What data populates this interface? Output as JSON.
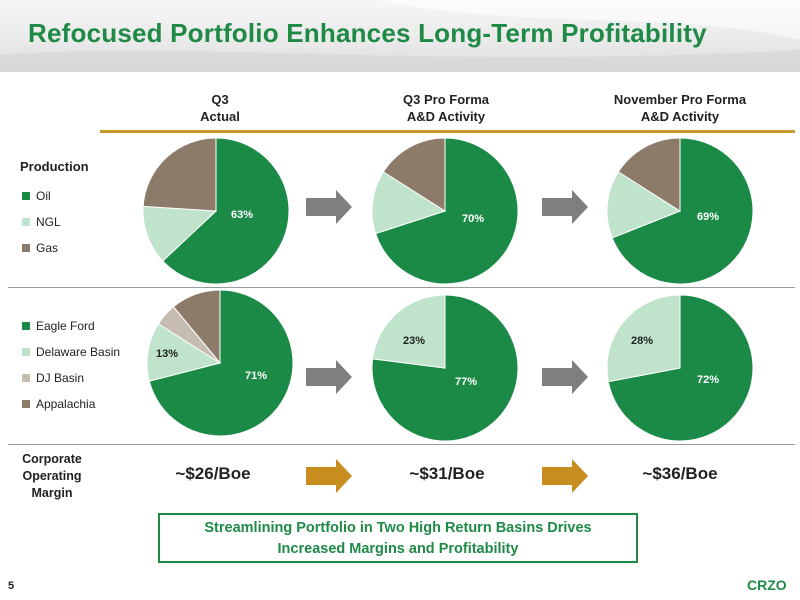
{
  "title": "Refocused Portfolio Enhances Long-Term Profitability",
  "columns": [
    {
      "line1": "Q3",
      "line2": "Actual"
    },
    {
      "line1": "Q3 Pro Forma",
      "line2": "A&D Activity"
    },
    {
      "line1": "November Pro Forma",
      "line2": "A&D Activity"
    }
  ],
  "production": {
    "label": "Production",
    "legend": [
      {
        "label": "Oil",
        "color": "#1b8a47"
      },
      {
        "label": "NGL",
        "color": "#bfe3cb"
      },
      {
        "label": "Gas",
        "color": "#8d7b6a"
      }
    ]
  },
  "basins": {
    "legend": [
      {
        "label": "Eagle Ford",
        "color": "#1b8a47"
      },
      {
        "label": "Delaware Basin",
        "color": "#bfe3cb"
      },
      {
        "label": "DJ Basin",
        "color": "#c7bcb0"
      },
      {
        "label": "Appalachia",
        "color": "#8d7b6a"
      }
    ]
  },
  "margin": {
    "label_lines": [
      "Corporate",
      "Operating",
      "Margin"
    ],
    "values": [
      "~$26/Boe",
      "~$31/Boe",
      "~$36/Boe"
    ]
  },
  "callout": {
    "line1": "Streamlining Portfolio in Two High Return Basins Drives",
    "line2": "Increased Margins and Profitability"
  },
  "footer": {
    "page_number": "5",
    "logo": "CRZO"
  },
  "chart_data": [
    {
      "type": "pie",
      "title": "Q3 Actual",
      "labels": [
        "Oil",
        "NGL",
        "Gas"
      ],
      "values": [
        63,
        13,
        24
      ],
      "slice_labels": [
        "63%",
        "",
        ""
      ]
    },
    {
      "type": "pie",
      "title": "Q3 Pro Forma A&D Activity",
      "labels": [
        "Oil",
        "NGL",
        "Gas"
      ],
      "values": [
        70,
        14,
        16
      ],
      "slice_labels": [
        "70%",
        "",
        ""
      ]
    },
    {
      "type": "pie",
      "title": "November Pro Forma A&D Activity",
      "labels": [
        "Oil",
        "NGL",
        "Gas"
      ],
      "values": [
        69,
        15,
        16
      ],
      "slice_labels": [
        "69%",
        "",
        ""
      ]
    },
    {
      "type": "pie",
      "title": "Q3 Actual",
      "labels": [
        "Eagle Ford",
        "Delaware Basin",
        "DJ Basin",
        "Appalachia"
      ],
      "values": [
        71,
        13,
        5,
        11
      ],
      "slice_labels": [
        "71%",
        "13%",
        "",
        ""
      ]
    },
    {
      "type": "pie",
      "title": "Q3 Pro Forma A&D Activity",
      "labels": [
        "Eagle Ford",
        "Delaware Basin"
      ],
      "values": [
        77,
        23
      ],
      "slice_labels": [
        "77%",
        "23%"
      ]
    },
    {
      "type": "pie",
      "title": "November Pro Forma A&D Activity",
      "labels": [
        "Eagle Ford",
        "Delaware Basin"
      ],
      "values": [
        72,
        28
      ],
      "slice_labels": [
        "72%",
        "28%"
      ]
    }
  ]
}
